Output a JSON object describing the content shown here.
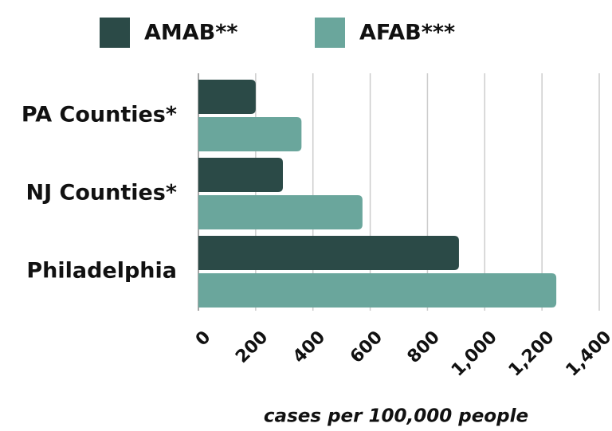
{
  "chart_data": {
    "type": "bar",
    "orientation": "horizontal",
    "categories": [
      "PA Counties*",
      "NJ Counties*",
      "Philadelphia"
    ],
    "series": [
      {
        "name": "AMAB**",
        "color": "#2b4a47",
        "values": [
          200,
          295,
          910
        ]
      },
      {
        "name": "AFAB***",
        "color": "#6aa69c",
        "values": [
          360,
          573,
          1250
        ]
      }
    ],
    "xlabel": "cases per 100,000 people",
    "xlim": [
      0,
      1400
    ],
    "xticks": [
      0,
      200,
      400,
      600,
      800,
      {
        "value": 1000,
        "label": "1,000"
      },
      {
        "value": 1200,
        "label": "1,200"
      },
      {
        "value": 1400,
        "label": "1,400"
      }
    ],
    "grid": true,
    "legend": "top"
  }
}
